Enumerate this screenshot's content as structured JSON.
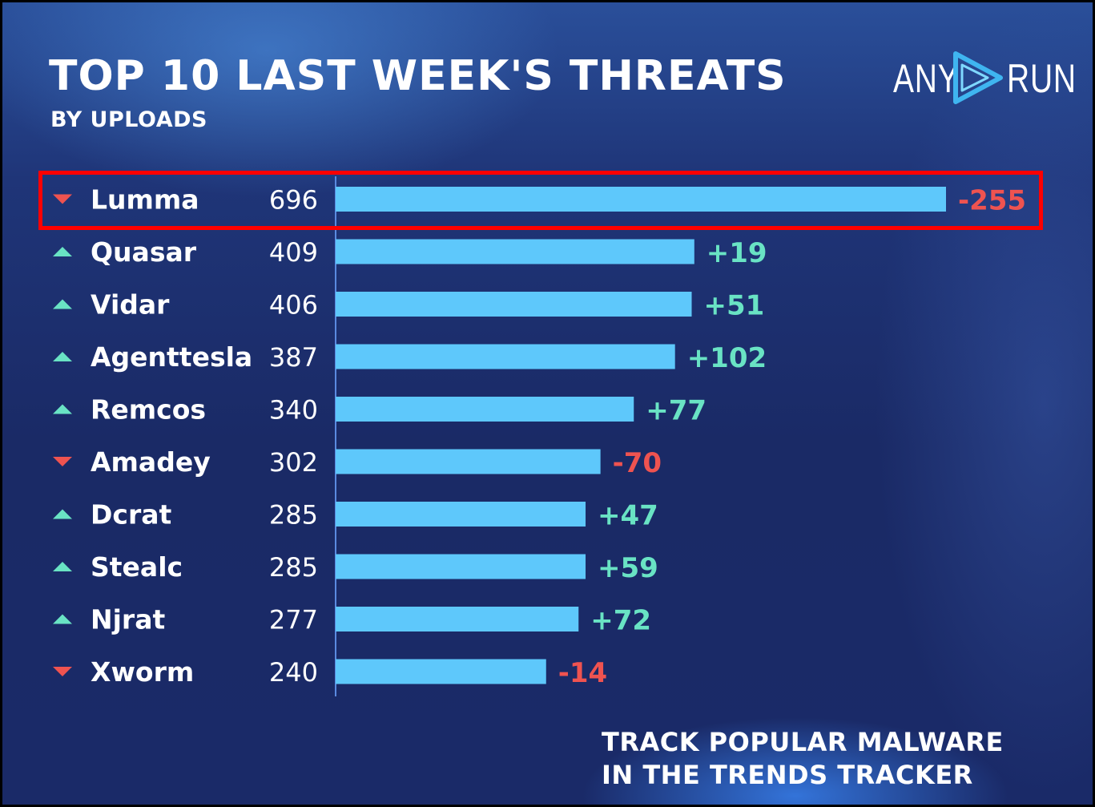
{
  "header": {
    "title": "TOP 10 LAST WEEK'S THREATS",
    "subtitle": "BY UPLOADS"
  },
  "logo": {
    "left": "ANY",
    "right": "RUN",
    "icon": "play-icon"
  },
  "cta": {
    "line1": "TRACK POPULAR MALWARE",
    "line2": "IN THE TRENDS TRACKER"
  },
  "colors": {
    "bar": "#5ec8fb",
    "up": "#69e3c4",
    "down": "#ef5350",
    "highlight": "#ff0000",
    "axis": "#5a8ae0"
  },
  "chart_data": {
    "type": "bar",
    "orientation": "horizontal",
    "categories": [
      "Lumma",
      "Quasar",
      "Vidar",
      "Agenttesla",
      "Remcos",
      "Amadey",
      "Dcrat",
      "Stealc",
      "Njrat",
      "Xworm"
    ],
    "values": [
      696,
      409,
      406,
      387,
      340,
      302,
      285,
      285,
      277,
      240
    ],
    "change_labels": [
      "-255",
      "+19",
      "+51",
      "+102",
      "+77",
      "-70",
      "+47",
      "+59",
      "+72",
      "-14"
    ],
    "trend": [
      "down",
      "up",
      "up",
      "up",
      "up",
      "down",
      "up",
      "up",
      "up",
      "down"
    ],
    "highlighted_category": "Lumma",
    "xlim": [
      0,
      700
    ]
  }
}
